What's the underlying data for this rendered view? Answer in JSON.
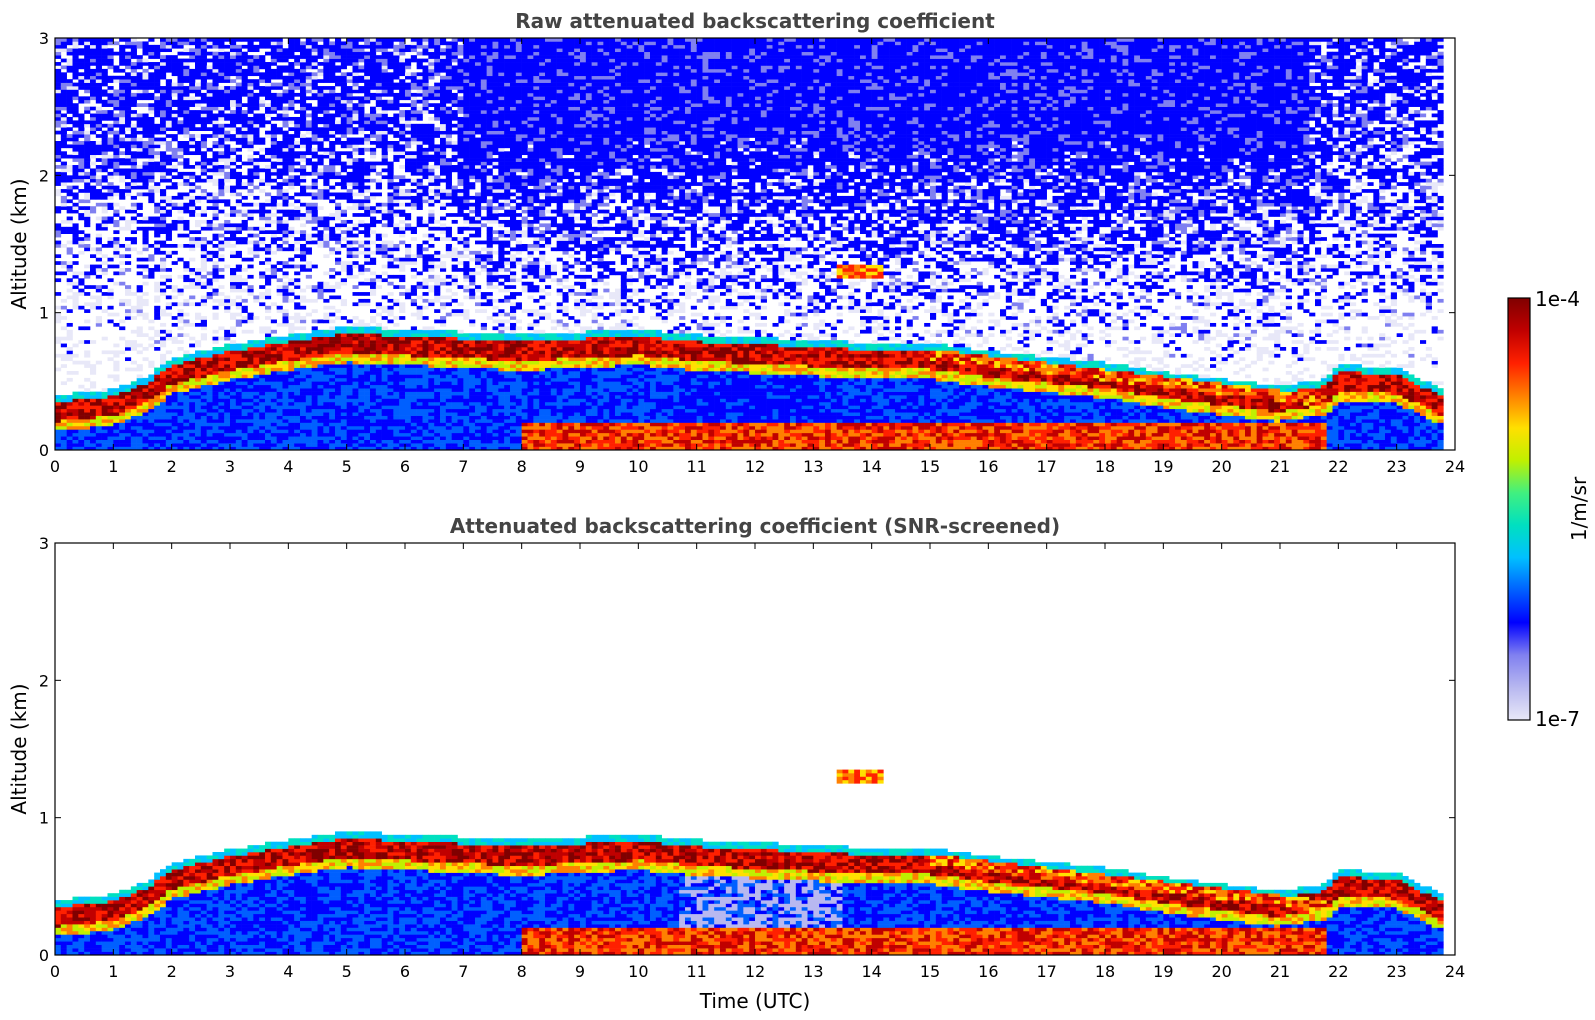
{
  "chart_data": [
    {
      "type": "heatmap",
      "title": "Raw attenuated backscattering coefficient",
      "xlabel": "",
      "ylabel": "Altitude (km)",
      "xlim": [
        0,
        24
      ],
      "ylim": [
        0,
        3
      ],
      "x_ticks": [
        "0",
        "1",
        "2",
        "3",
        "4",
        "5",
        "6",
        "7",
        "8",
        "9",
        "10",
        "11",
        "12",
        "13",
        "14",
        "15",
        "16",
        "17",
        "18",
        "19",
        "20",
        "21",
        "22",
        "23",
        "24"
      ],
      "y_ticks": [
        "0",
        "1",
        "2",
        "3"
      ],
      "boundary_layer_top_km": {
        "time_utc": [
          0,
          1,
          1.6,
          2,
          3,
          4,
          5,
          6,
          7,
          8,
          9,
          10,
          11,
          12,
          13,
          14,
          15,
          16,
          17,
          18,
          19,
          20,
          21,
          21.8,
          22,
          23,
          23.8
        ],
        "altitude_km": [
          0.28,
          0.32,
          0.42,
          0.55,
          0.65,
          0.72,
          0.78,
          0.76,
          0.74,
          0.72,
          0.74,
          0.76,
          0.72,
          0.7,
          0.68,
          0.66,
          0.66,
          0.6,
          0.56,
          0.52,
          0.45,
          0.4,
          0.35,
          0.4,
          0.5,
          0.48,
          0.32
        ]
      },
      "signal_scale": "log"
    },
    {
      "type": "heatmap",
      "title": "Attenuated backscattering coefficient (SNR-screened)",
      "xlabel": "Time (UTC)",
      "ylabel": "Altitude (km)",
      "xlim": [
        0,
        24
      ],
      "ylim": [
        0,
        3
      ],
      "x_ticks": [
        "0",
        "1",
        "2",
        "3",
        "4",
        "5",
        "6",
        "7",
        "8",
        "9",
        "10",
        "11",
        "12",
        "13",
        "14",
        "15",
        "16",
        "17",
        "18",
        "19",
        "20",
        "21",
        "22",
        "23",
        "24"
      ],
      "y_ticks": [
        "0",
        "1",
        "2",
        "3"
      ],
      "signal_scale": "log"
    }
  ],
  "colorbar": {
    "label": "1/m/sr",
    "max_label": "1e-4",
    "min_label": "1e-7",
    "colors": [
      "#e8e8f8",
      "#b8b8f0",
      "#8080f0",
      "#0000ff",
      "#0060ff",
      "#00c0ff",
      "#00e0c0",
      "#40f080",
      "#c0f000",
      "#ffe000",
      "#ff8000",
      "#ff2000",
      "#c00000",
      "#800000"
    ]
  }
}
